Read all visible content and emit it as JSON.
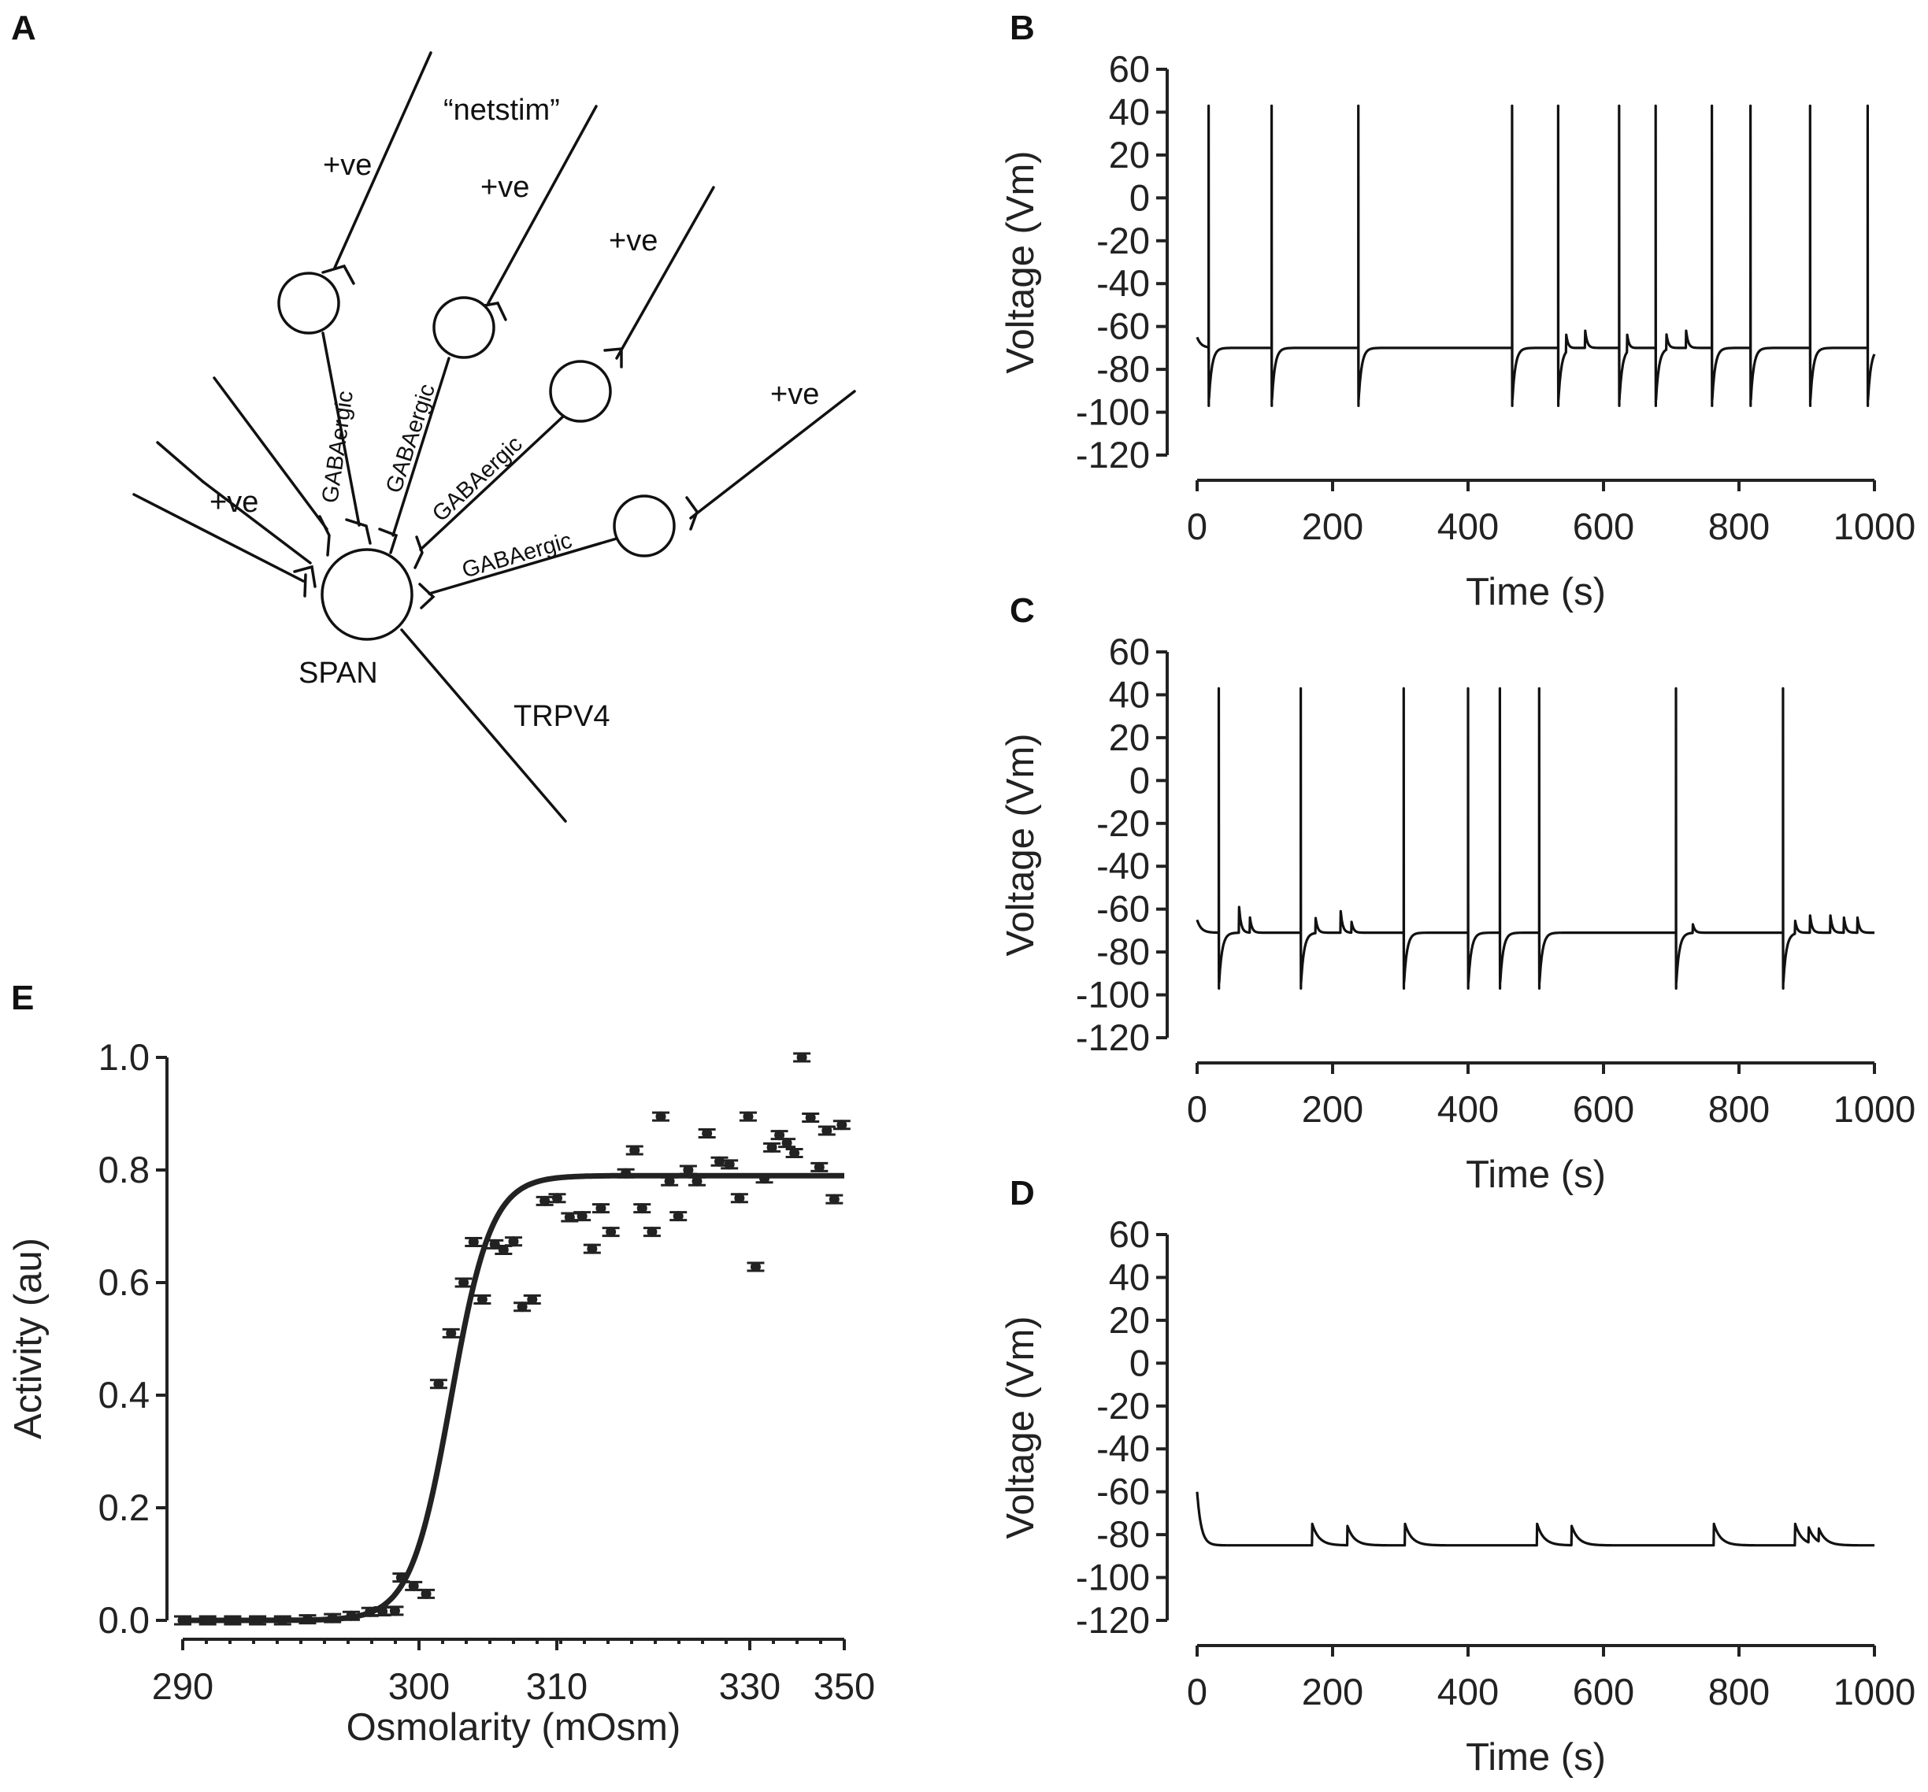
{
  "panels": {
    "a": {
      "letter": "A"
    },
    "b": {
      "letter": "B"
    },
    "c": {
      "letter": "C"
    },
    "d": {
      "letter": "D"
    },
    "e": {
      "letter": "E"
    }
  },
  "diagram": {
    "netstim_label": "“netstim”",
    "positive_label": "+ve",
    "gaba_label": "GABAergic",
    "span_label": "SPAN",
    "trpv4_label": "TRPV4"
  },
  "colors": {
    "ink": "#111111"
  },
  "chart_data": [
    {
      "panel": "B",
      "type": "line",
      "title": "",
      "xlabel": "Time (s)",
      "ylabel": "Voltage (Vm)",
      "xlim": [
        0,
        1000
      ],
      "ylim": [
        -120,
        60
      ],
      "xticks": [
        0,
        200,
        400,
        600,
        800,
        1000
      ],
      "yticks": [
        60,
        40,
        20,
        0,
        -20,
        -40,
        -60,
        -80,
        -100,
        -120
      ],
      "baseline_mV": -70,
      "rest_start_mV": -65,
      "spike_peak_mV": 43,
      "spike_trough_mV": -97,
      "spike_times_s": [
        17,
        110,
        238,
        465,
        533,
        623,
        677,
        760,
        817,
        905,
        990
      ],
      "epsp_events": [
        {
          "t": 545,
          "amp": 8
        },
        {
          "t": 573,
          "amp": 8
        },
        {
          "t": 635,
          "amp": 8
        },
        {
          "t": 693,
          "amp": 7
        },
        {
          "t": 722,
          "amp": 8
        }
      ]
    },
    {
      "panel": "C",
      "type": "line",
      "title": "",
      "xlabel": "Time (s)",
      "ylabel": "Voltage (Vm)",
      "xlim": [
        0,
        1000
      ],
      "ylim": [
        -120,
        60
      ],
      "xticks": [
        0,
        200,
        400,
        600,
        800,
        1000
      ],
      "yticks": [
        60,
        40,
        20,
        0,
        -20,
        -40,
        -60,
        -80,
        -100,
        -120
      ],
      "baseline_mV": -71,
      "rest_start_mV": -65,
      "spike_peak_mV": 43,
      "spike_trough_mV": -97,
      "spike_times_s": [
        32,
        153,
        305,
        400,
        447,
        505,
        707,
        865
      ],
      "epsp_events": [
        {
          "t": 62,
          "amp": 12
        },
        {
          "t": 78,
          "amp": 7
        },
        {
          "t": 175,
          "amp": 7
        },
        {
          "t": 212,
          "amp": 10
        },
        {
          "t": 228,
          "amp": 5
        },
        {
          "t": 732,
          "amp": 4
        },
        {
          "t": 883,
          "amp": 6
        },
        {
          "t": 905,
          "amp": 8
        },
        {
          "t": 935,
          "amp": 8
        },
        {
          "t": 955,
          "amp": 7
        },
        {
          "t": 975,
          "amp": 7
        }
      ]
    },
    {
      "panel": "D",
      "type": "line",
      "title": "",
      "xlabel": "Time (s)",
      "ylabel": "Voltage (Vm)",
      "xlim": [
        0,
        1000
      ],
      "ylim": [
        -120,
        60
      ],
      "xticks": [
        0,
        200,
        400,
        600,
        800,
        1000
      ],
      "yticks": [
        60,
        40,
        20,
        0,
        -20,
        -40,
        -60,
        -80,
        -100,
        -120
      ],
      "baseline_mV": -85,
      "rest_start_mV": -60,
      "spike_times_s": [],
      "ipsp_events": [
        {
          "t": 170,
          "amp": 10
        },
        {
          "t": 222,
          "amp": 9
        },
        {
          "t": 307,
          "amp": 10
        },
        {
          "t": 502,
          "amp": 10
        },
        {
          "t": 553,
          "amp": 9
        },
        {
          "t": 763,
          "amp": 10
        },
        {
          "t": 883,
          "amp": 10
        },
        {
          "t": 903,
          "amp": 7
        },
        {
          "t": 918,
          "amp": 6
        }
      ]
    },
    {
      "panel": "E",
      "type": "scatter",
      "title": "",
      "xlabel": "Osmolarity (mOsm)",
      "ylabel": "Activity (au)",
      "xtick_labels": [
        "290",
        "300",
        "310",
        "330",
        "350"
      ],
      "x_index_range": [
        0,
        53
      ],
      "ylim": [
        0,
        1.0
      ],
      "yticks": [
        0.0,
        0.2,
        0.4,
        0.6,
        0.8,
        1.0
      ],
      "ytick_labels": [
        "0.0",
        "0.2",
        "0.4",
        "0.6",
        "0.8",
        "1.0"
      ],
      "fit": {
        "type": "sigmoid",
        "max": 0.79,
        "midpoint_index": 21.5,
        "slope": 0.62
      },
      "points": [
        {
          "x": 0,
          "y": 0.0
        },
        {
          "x": 2,
          "y": 0.0
        },
        {
          "x": 4,
          "y": 0.0
        },
        {
          "x": 6,
          "y": 0.0
        },
        {
          "x": 8,
          "y": 0.0
        },
        {
          "x": 10,
          "y": 0.002
        },
        {
          "x": 12,
          "y": 0.004
        },
        {
          "x": 13.5,
          "y": 0.008
        },
        {
          "x": 15,
          "y": 0.015
        },
        {
          "x": 16,
          "y": 0.016
        },
        {
          "x": 17,
          "y": 0.017
        },
        {
          "x": 17.5,
          "y": 0.076
        },
        {
          "x": 18.5,
          "y": 0.061
        },
        {
          "x": 19.5,
          "y": 0.047
        },
        {
          "x": 20.5,
          "y": 0.42
        },
        {
          "x": 21.5,
          "y": 0.51
        },
        {
          "x": 22.5,
          "y": 0.6
        },
        {
          "x": 23.3,
          "y": 0.672
        },
        {
          "x": 24.0,
          "y": 0.57
        },
        {
          "x": 25,
          "y": 0.668
        },
        {
          "x": 25.7,
          "y": 0.658
        },
        {
          "x": 26.5,
          "y": 0.673
        },
        {
          "x": 27.2,
          "y": 0.557
        },
        {
          "x": 28.0,
          "y": 0.57
        },
        {
          "x": 29,
          "y": 0.745
        },
        {
          "x": 30,
          "y": 0.75
        },
        {
          "x": 31,
          "y": 0.716
        },
        {
          "x": 32,
          "y": 0.718
        },
        {
          "x": 32.8,
          "y": 0.66
        },
        {
          "x": 33.5,
          "y": 0.732
        },
        {
          "x": 34.3,
          "y": 0.69
        },
        {
          "x": 35.5,
          "y": 0.794
        },
        {
          "x": 36.2,
          "y": 0.835
        },
        {
          "x": 36.8,
          "y": 0.732
        },
        {
          "x": 37.6,
          "y": 0.69
        },
        {
          "x": 38.3,
          "y": 0.895
        },
        {
          "x": 39.0,
          "y": 0.78
        },
        {
          "x": 39.7,
          "y": 0.718
        },
        {
          "x": 40.5,
          "y": 0.8
        },
        {
          "x": 41.2,
          "y": 0.78
        },
        {
          "x": 42.0,
          "y": 0.865
        },
        {
          "x": 43.0,
          "y": 0.815
        },
        {
          "x": 43.8,
          "y": 0.81
        },
        {
          "x": 44.6,
          "y": 0.75
        },
        {
          "x": 45.3,
          "y": 0.895
        },
        {
          "x": 45.9,
          "y": 0.628
        },
        {
          "x": 46.6,
          "y": 0.785
        },
        {
          "x": 47.2,
          "y": 0.84
        },
        {
          "x": 47.8,
          "y": 0.862
        },
        {
          "x": 48.4,
          "y": 0.848
        },
        {
          "x": 49.0,
          "y": 0.83
        },
        {
          "x": 49.6,
          "y": 1.0
        },
        {
          "x": 50.3,
          "y": 0.893
        },
        {
          "x": 51.0,
          "y": 0.805
        },
        {
          "x": 51.6,
          "y": 0.87
        },
        {
          "x": 52.2,
          "y": 0.748
        },
        {
          "x": 52.8,
          "y": 0.88
        }
      ]
    }
  ]
}
